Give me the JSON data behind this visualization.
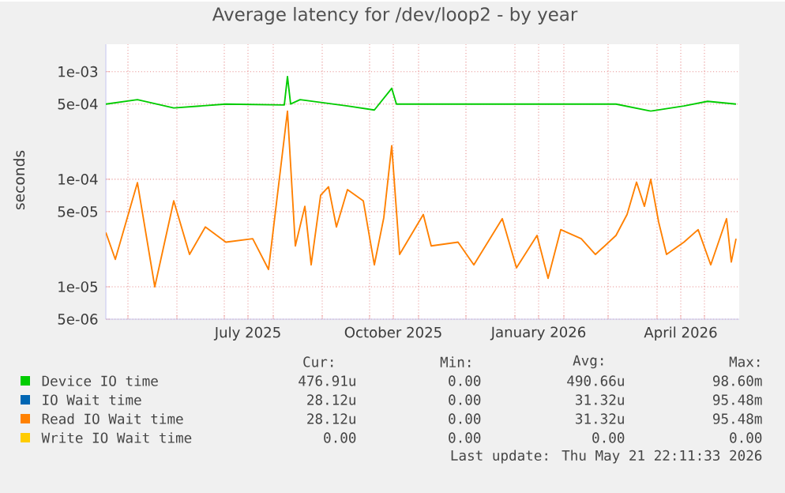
{
  "chart_data": {
    "type": "line",
    "title": "Average latency for /dev/loop2 - by year",
    "ylabel": "seconds",
    "log": "y",
    "grid": true,
    "legend": "bottom",
    "marker": "none",
    "line_style": "solid",
    "xlim": [
      "2025-04-17",
      "2026-05-23"
    ],
    "xticks": [
      {
        "value": "2025-05-01",
        "label": null
      },
      {
        "value": "2025-06-01",
        "label": null
      },
      {
        "value": "2025-07-01",
        "label": null
      },
      {
        "value": "2025-07-16",
        "label": "July 2025"
      },
      {
        "value": "2025-08-01",
        "label": null
      },
      {
        "value": "2025-09-01",
        "label": null
      },
      {
        "value": "2025-10-01",
        "label": null
      },
      {
        "value": "2025-10-16",
        "label": "October 2025"
      },
      {
        "value": "2025-11-01",
        "label": null
      },
      {
        "value": "2025-12-01",
        "label": null
      },
      {
        "value": "2026-01-01",
        "label": null
      },
      {
        "value": "2026-01-16",
        "label": "January 2026"
      },
      {
        "value": "2026-02-01",
        "label": null
      },
      {
        "value": "2026-03-01",
        "label": null
      },
      {
        "value": "2026-04-01",
        "label": null
      },
      {
        "value": "2026-04-16",
        "label": "April 2026"
      },
      {
        "value": "2026-05-01",
        "label": null
      }
    ],
    "ylim": [
      5e-06,
      0.0018
    ],
    "yticks": [
      {
        "value": 5e-06,
        "label": "5e-06"
      },
      {
        "value": 1e-05,
        "label": "1e-05"
      },
      {
        "value": 5e-05,
        "label": "5e-05"
      },
      {
        "value": 0.0001,
        "label": "1e-04"
      },
      {
        "value": 0.0005,
        "label": "5e-04"
      },
      {
        "value": 0.001,
        "label": "1e-03"
      }
    ],
    "series": [
      {
        "name": "Device IO time",
        "color": "#00cc00",
        "x": [
          "2025-04-17",
          "2025-05-07",
          "2025-05-30",
          "2025-07-02",
          "2025-08-08",
          "2025-08-10",
          "2025-08-12",
          "2025-08-18",
          "2025-09-17",
          "2025-10-04",
          "2025-10-15",
          "2025-10-18",
          "2025-11-26",
          "2026-01-15",
          "2026-03-06",
          "2026-03-28",
          "2026-04-18",
          "2026-05-03",
          "2026-05-21"
        ],
        "values": [
          0.0005,
          0.00055,
          0.00046,
          0.0005,
          0.00049,
          0.0009,
          0.0005,
          0.00055,
          0.00048,
          0.00044,
          0.0007,
          0.0005,
          0.0005,
          0.0005,
          0.0005,
          0.00043,
          0.00048,
          0.00053,
          0.0005
        ]
      },
      {
        "name": "IO Wait time",
        "color": "#0066b3"
      },
      {
        "name": "Read IO Wait time",
        "color": "#ff8000",
        "x": [
          "2025-04-17",
          "2025-04-23",
          "2025-05-07",
          "2025-05-18",
          "2025-05-30",
          "2025-06-09",
          "2025-06-19",
          "2025-07-02",
          "2025-07-19",
          "2025-07-29",
          "2025-08-10",
          "2025-08-15",
          "2025-08-21",
          "2025-08-25",
          "2025-08-31",
          "2025-09-05",
          "2025-09-10",
          "2025-09-17",
          "2025-09-27",
          "2025-10-04",
          "2025-10-10",
          "2025-10-15",
          "2025-10-20",
          "2025-11-04",
          "2025-11-09",
          "2025-11-26",
          "2025-12-06",
          "2025-12-24",
          "2026-01-02",
          "2026-01-15",
          "2026-01-22",
          "2026-01-30",
          "2026-02-12",
          "2026-02-21",
          "2026-03-06",
          "2026-03-13",
          "2026-03-19",
          "2026-03-24",
          "2026-03-28",
          "2026-04-02",
          "2026-04-07",
          "2026-04-18",
          "2026-04-27",
          "2026-05-05",
          "2026-05-15",
          "2026-05-18",
          "2026-05-21"
        ],
        "values": [
          3.2e-05,
          1.8e-05,
          9.3e-05,
          1e-05,
          6.3e-05,
          2e-05,
          3.6e-05,
          2.6e-05,
          2.8e-05,
          1.45e-05,
          0.00043,
          2.4e-05,
          5.6e-05,
          1.6e-05,
          7.1e-05,
          8.5e-05,
          3.6e-05,
          8e-05,
          6.3e-05,
          1.6e-05,
          4.4e-05,
          0.000205,
          2e-05,
          4.7e-05,
          2.4e-05,
          2.6e-05,
          1.6e-05,
          4.3e-05,
          1.5e-05,
          3e-05,
          1.2e-05,
          3.4e-05,
          2.8e-05,
          2e-05,
          3e-05,
          4.7e-05,
          9.4e-05,
          5.6e-05,
          0.0001,
          4e-05,
          2e-05,
          2.6e-05,
          3.4e-05,
          1.6e-05,
          4.3e-05,
          1.7e-05,
          2.8e-05
        ]
      },
      {
        "name": "Write IO Wait time",
        "color": "#ffcc00"
      }
    ],
    "annotations": [
      "Cur:",
      "Min:",
      "Avg:",
      "Max:",
      "476.91u",
      "0.00",
      "490.66u",
      "98.60m",
      "28.12u",
      "0.00",
      "31.32u",
      "95.48m",
      "28.12u",
      "0.00",
      "31.32u",
      "95.48m",
      "0.00",
      "0.00",
      "0.00",
      "0.00",
      "Last update: Thu May 21 22:11:33 2026"
    ]
  }
}
